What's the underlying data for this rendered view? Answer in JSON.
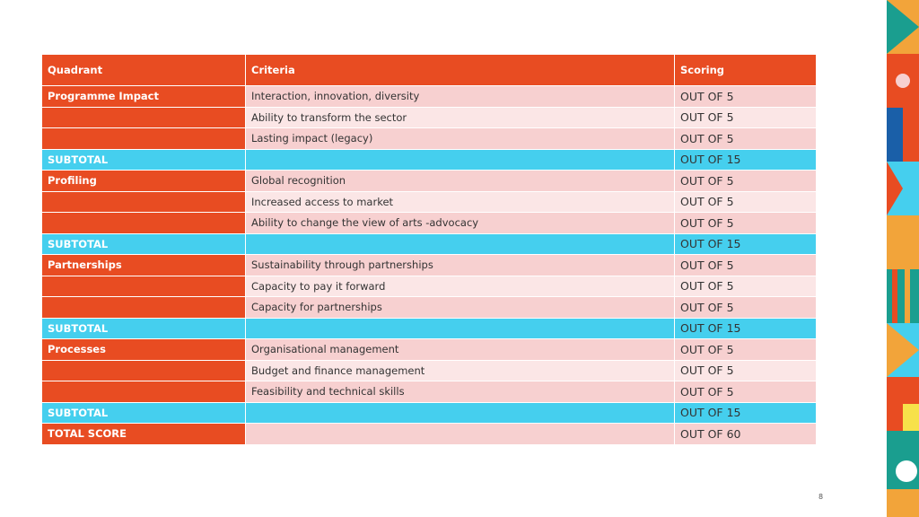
{
  "table": {
    "header": [
      "Quadrant",
      "Criteria",
      "Scoring"
    ],
    "rows": [
      {
        "quadrant": "Programme Impact",
        "criteria": "Interaction, innovation, diversity",
        "scoring": "OUT OF 5"
      },
      {
        "criteria": "Ability to transform the sector",
        "scoring": "OUT OF 5"
      },
      {
        "criteria": "Lasting impact (legacy)",
        "scoring": "OUT OF 5"
      },
      {
        "quadrant": "SUBTOTAL",
        "scoring": "OUT OF 15"
      },
      {
        "quadrant": "Profiling",
        "criteria": "Global recognition",
        "scoring": "OUT OF 5"
      },
      {
        "criteria": "Increased access to market",
        "scoring": "OUT OF 5"
      },
      {
        "criteria": "Ability to change the view of arts -advocacy",
        "scoring": "OUT OF 5"
      },
      {
        "quadrant": "SUBTOTAL",
        "scoring": "OUT OF 15"
      },
      {
        "quadrant": "Partnerships",
        "criteria": "Sustainability through partnerships",
        "scoring": "OUT OF 5"
      },
      {
        "criteria": "Capacity to pay it forward",
        "scoring": "OUT OF 5"
      },
      {
        "criteria": "Capacity for partnerships",
        "scoring": "OUT OF 5"
      },
      {
        "quadrant": "SUBTOTAL",
        "scoring": "OUT OF 15"
      },
      {
        "quadrant": "Processes",
        "criteria": "Organisational management",
        "scoring": "OUT OF 5"
      },
      {
        "criteria": "Budget and finance management",
        "scoring": "OUT OF 5"
      },
      {
        "criteria": "Feasibility and technical skills",
        "scoring": "OUT OF 5"
      },
      {
        "quadrant": "SUBTOTAL",
        "scoring": "OUT OF 15"
      },
      {
        "quadrant": "TOTAL SCORE",
        "scoring": "OUT OF 60"
      }
    ]
  },
  "page_number": "8"
}
